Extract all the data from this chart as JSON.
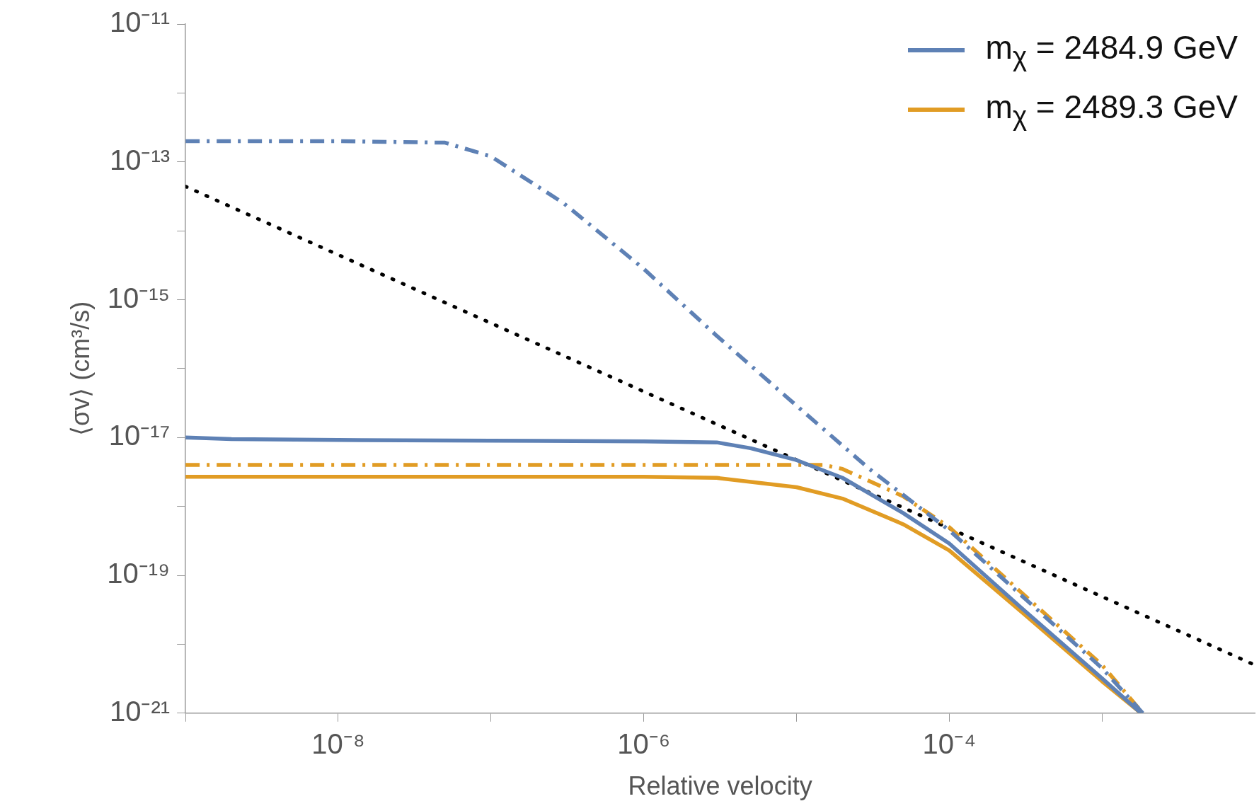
{
  "chart_data": {
    "type": "line",
    "xlabel": "Relative velocity",
    "ylabel": "⟨σv⟩ (cm³/s)",
    "log": "xy",
    "legend": "top right",
    "marker": "none",
    "grid": false,
    "xlim": [
      1e-09,
      0.01
    ],
    "xticks": [
      {
        "value": 1e-09,
        "label": null
      },
      {
        "value": 1e-08,
        "label": "10⁻⁸"
      },
      {
        "value": 1e-07,
        "label": null
      },
      {
        "value": 1e-06,
        "label": "10⁻⁶"
      },
      {
        "value": 1e-05,
        "label": null
      },
      {
        "value": 0.0001,
        "label": "10⁻⁴"
      },
      {
        "value": 0.001,
        "label": null
      }
    ],
    "ylim": [
      1e-21,
      1e-11
    ],
    "yticks": [
      {
        "value": 1e-21,
        "label": "10⁻²¹"
      },
      {
        "value": 1e-20,
        "label": null
      },
      {
        "value": 1e-19,
        "label": "10⁻¹⁹"
      },
      {
        "value": 1e-18,
        "label": null
      },
      {
        "value": 1e-17,
        "label": "10⁻¹⁷"
      },
      {
        "value": 1e-16,
        "label": null
      },
      {
        "value": 1e-15,
        "label": "10⁻¹⁵"
      },
      {
        "value": 1e-14,
        "label": null
      },
      {
        "value": 1e-13,
        "label": "10⁻¹³"
      },
      {
        "value": 1e-12,
        "label": null
      },
      {
        "value": 1e-11,
        "label": "10⁻¹¹"
      }
    ],
    "series": [
      {
        "name": "m$_{χ}$ = 2484.9 GeV",
        "color": "#5e81b5",
        "line_style": "solid",
        "x": [
          1e-09,
          2e-09,
          1e-08,
          1e-07,
          1e-06,
          3e-06,
          5e-06,
          1e-05,
          2e-05,
          5e-05,
          0.0001,
          0.0003,
          0.001,
          0.0018
        ],
        "values": [
          1e-17,
          9.5e-18,
          9.2e-18,
          9e-18,
          8.8e-18,
          8.5e-18,
          7e-18,
          4.7e-18,
          2.6e-18,
          8e-19,
          2.9e-19,
          3.3e-20,
          3.2e-21,
          1e-21
        ]
      },
      {
        "name": "m$_{χ}$ = 2489.3 GeV",
        "color": "#e19c24",
        "line_style": "solid",
        "x": [
          1e-09,
          1e-08,
          1e-07,
          1e-06,
          3e-06,
          1e-05,
          2e-05,
          5e-05,
          0.0001,
          0.0003,
          0.001,
          0.0018
        ],
        "values": [
          2.7e-18,
          2.7e-18,
          2.7e-18,
          2.7e-18,
          2.6e-18,
          1.9e-18,
          1.3e-18,
          5.5e-19,
          2.3e-19,
          2.9e-20,
          2.9e-21,
          1e-21
        ]
      },
      {
        "color": "#5e81b5",
        "line_style": "dashdot",
        "x": [
          1e-09,
          1e-08,
          5e-08,
          1e-07,
          3e-07,
          1e-06,
          3e-06,
          1e-05,
          3e-05,
          0.0001,
          0.0003,
          0.001,
          0.00185
        ],
        "values": [
          2e-13,
          2e-13,
          1.9e-13,
          1.2e-13,
          2.5e-14,
          2.8e-15,
          3e-16,
          2.9e-17,
          3.5e-18,
          4.5e-19,
          5e-20,
          4.5e-21,
          1e-21
        ]
      },
      {
        "color": "#e19c24",
        "line_style": "dashdot",
        "x": [
          1e-09,
          1e-07,
          1e-06,
          1e-05,
          1.5e-05,
          2e-05,
          5e-05,
          0.0001,
          0.0003,
          0.001,
          0.00185
        ],
        "values": [
          4e-18,
          4e-18,
          4e-18,
          4e-18,
          4e-18,
          3.5e-18,
          1.4e-18,
          5e-19,
          5.5e-20,
          5e-21,
          1e-21
        ]
      },
      {
        "color": "#000000",
        "line_style": "dotted",
        "x": [
          1e-09,
          0.01
        ],
        "values": [
          4.4e-14,
          5e-21
        ]
      }
    ]
  }
}
